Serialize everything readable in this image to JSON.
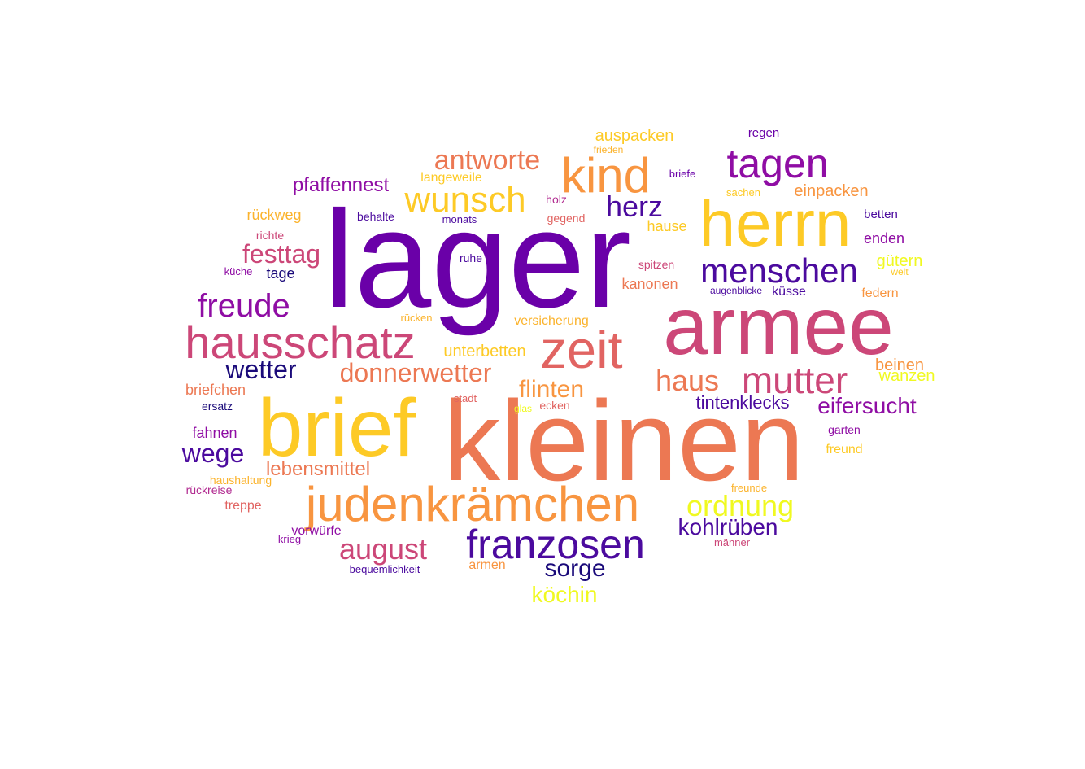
{
  "colors": {
    "navy": "#1a0a7a",
    "indigo": "#4b0a9e",
    "purple": "#6a00a8",
    "violet": "#8f0da4",
    "magenta": "#b12a90",
    "rose": "#cc4778",
    "coral": "#e16462",
    "salmon": "#ec7853",
    "orange": "#f89540",
    "amber": "#fbb32c",
    "gold": "#fdca26",
    "yellow": "#f0f921"
  },
  "words": [
    {
      "text": "lager",
      "color": "purple"
    },
    {
      "text": "kleinen",
      "color": "salmon"
    },
    {
      "text": "armee",
      "color": "rose"
    },
    {
      "text": "brief",
      "color": "gold"
    },
    {
      "text": "herrn",
      "color": "gold"
    },
    {
      "text": "zeit",
      "color": "coral"
    },
    {
      "text": "hausschatz",
      "color": "rose"
    },
    {
      "text": "judenkrämchen",
      "color": "orange"
    },
    {
      "text": "kind",
      "color": "orange"
    },
    {
      "text": "tagen",
      "color": "violet"
    },
    {
      "text": "franzosen",
      "color": "indigo"
    },
    {
      "text": "mutter",
      "color": "rose"
    },
    {
      "text": "menschen",
      "color": "indigo"
    },
    {
      "text": "wunsch",
      "color": "gold"
    },
    {
      "text": "freude",
      "color": "violet"
    },
    {
      "text": "haus",
      "color": "salmon"
    },
    {
      "text": "antworte",
      "color": "salmon"
    },
    {
      "text": "ordnung",
      "color": "yellow"
    },
    {
      "text": "august",
      "color": "rose"
    },
    {
      "text": "donnerwetter",
      "color": "salmon"
    },
    {
      "text": "herz",
      "color": "indigo"
    },
    {
      "text": "wetter",
      "color": "navy"
    },
    {
      "text": "wege",
      "color": "indigo"
    },
    {
      "text": "festtag",
      "color": "rose"
    },
    {
      "text": "flinten",
      "color": "orange"
    },
    {
      "text": "sorge",
      "color": "navy"
    },
    {
      "text": "köchin",
      "color": "yellow"
    },
    {
      "text": "eifersucht",
      "color": "violet"
    },
    {
      "text": "kohlrüben",
      "color": "indigo"
    },
    {
      "text": "lebensmittel",
      "color": "salmon"
    },
    {
      "text": "tintenklecks",
      "color": "indigo"
    },
    {
      "text": "pfaffennest",
      "color": "violet"
    },
    {
      "text": "auspacken",
      "color": "gold"
    },
    {
      "text": "unterbetten",
      "color": "gold"
    },
    {
      "text": "einpacken",
      "color": "orange"
    },
    {
      "text": "beinen",
      "color": "orange"
    },
    {
      "text": "wanzen",
      "color": "yellow"
    },
    {
      "text": "kanonen",
      "color": "salmon"
    },
    {
      "text": "hause",
      "color": "gold"
    },
    {
      "text": "gütern",
      "color": "yellow"
    },
    {
      "text": "briefchen",
      "color": "salmon"
    },
    {
      "text": "fahnen",
      "color": "violet"
    },
    {
      "text": "rückweg",
      "color": "amber"
    },
    {
      "text": "langeweile",
      "color": "gold"
    },
    {
      "text": "enden",
      "color": "violet"
    },
    {
      "text": "federn",
      "color": "orange"
    },
    {
      "text": "küsse",
      "color": "indigo"
    },
    {
      "text": "versicherung",
      "color": "amber"
    },
    {
      "text": "tage",
      "color": "navy"
    },
    {
      "text": "treppe",
      "color": "coral"
    },
    {
      "text": "vorwürfe",
      "color": "violet"
    },
    {
      "text": "armen",
      "color": "orange"
    },
    {
      "text": "freund",
      "color": "gold"
    },
    {
      "text": "regen",
      "color": "purple"
    },
    {
      "text": "betten",
      "color": "indigo"
    },
    {
      "text": "behalte",
      "color": "indigo"
    },
    {
      "text": "holz",
      "color": "magenta"
    },
    {
      "text": "gegend",
      "color": "coral"
    },
    {
      "text": "monats",
      "color": "indigo"
    },
    {
      "text": "richte",
      "color": "rose"
    },
    {
      "text": "spitzen",
      "color": "rose"
    },
    {
      "text": "ruhe",
      "color": "indigo"
    },
    {
      "text": "rücken",
      "color": "amber"
    },
    {
      "text": "stadt",
      "color": "coral"
    },
    {
      "text": "ecken",
      "color": "coral"
    },
    {
      "text": "ersatz",
      "color": "navy"
    },
    {
      "text": "garten",
      "color": "violet"
    },
    {
      "text": "haushaltung",
      "color": "amber"
    },
    {
      "text": "freunde",
      "color": "amber"
    },
    {
      "text": "rückreise",
      "color": "magenta"
    },
    {
      "text": "männer",
      "color": "rose"
    },
    {
      "text": "krieg",
      "color": "violet"
    },
    {
      "text": "bequemlichkeit",
      "color": "indigo"
    },
    {
      "text": "briefe",
      "color": "purple"
    },
    {
      "text": "sachen",
      "color": "gold"
    },
    {
      "text": "frieden",
      "color": "amber"
    },
    {
      "text": "küche",
      "color": "violet"
    },
    {
      "text": "augenblicke",
      "color": "indigo"
    },
    {
      "text": "welt",
      "color": "gold"
    },
    {
      "text": "glas",
      "color": "yellow"
    }
  ]
}
